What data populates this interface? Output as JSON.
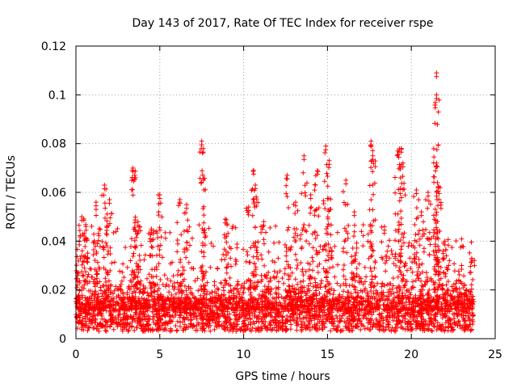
{
  "chart_data": {
    "type": "scatter",
    "title": "Day 143 of 2017, Rate Of TEC Index for receiver rspe",
    "xlabel": "GPS time / hours",
    "ylabel": "ROTI / TECUs",
    "xlim": [
      0,
      25
    ],
    "ylim": [
      0,
      0.12
    ],
    "x_ticks": [
      0,
      5,
      10,
      15,
      20,
      25
    ],
    "y_ticks": [
      0,
      0.02,
      0.04,
      0.06,
      0.08,
      0.1,
      0.12
    ],
    "x_tick_labels": [
      "0",
      "5",
      "10",
      "15",
      "20",
      "25"
    ],
    "y_tick_labels": [
      "0",
      "0.02",
      "0.04",
      "0.06",
      "0.08",
      "0.1",
      "0.12"
    ],
    "grid": true,
    "marker": "+",
    "marker_color": "#ff0000",
    "grid_color": "#a0a0a0",
    "series": [
      {
        "name": "ROTI",
        "notable_points": [
          {
            "x": 0.2,
            "y": 0.04
          },
          {
            "x": 0.35,
            "y": 0.05
          },
          {
            "x": 0.6,
            "y": 0.046
          },
          {
            "x": 1.2,
            "y": 0.056
          },
          {
            "x": 1.7,
            "y": 0.063
          },
          {
            "x": 2.0,
            "y": 0.057
          },
          {
            "x": 3.4,
            "y": 0.07
          },
          {
            "x": 3.5,
            "y": 0.067
          },
          {
            "x": 3.7,
            "y": 0.048
          },
          {
            "x": 4.5,
            "y": 0.045
          },
          {
            "x": 5.0,
            "y": 0.059
          },
          {
            "x": 6.2,
            "y": 0.057
          },
          {
            "x": 6.6,
            "y": 0.055
          },
          {
            "x": 7.5,
            "y": 0.081
          },
          {
            "x": 7.6,
            "y": 0.078
          },
          {
            "x": 8.9,
            "y": 0.049
          },
          {
            "x": 10.3,
            "y": 0.054
          },
          {
            "x": 10.6,
            "y": 0.069
          },
          {
            "x": 10.7,
            "y": 0.063
          },
          {
            "x": 11.2,
            "y": 0.048
          },
          {
            "x": 12.6,
            "y": 0.067
          },
          {
            "x": 13.1,
            "y": 0.056
          },
          {
            "x": 13.6,
            "y": 0.075
          },
          {
            "x": 14.0,
            "y": 0.059
          },
          {
            "x": 14.4,
            "y": 0.069
          },
          {
            "x": 14.9,
            "y": 0.079
          },
          {
            "x": 15.1,
            "y": 0.073
          },
          {
            "x": 16.1,
            "y": 0.065
          },
          {
            "x": 16.6,
            "y": 0.052
          },
          {
            "x": 17.6,
            "y": 0.081
          },
          {
            "x": 17.7,
            "y": 0.075
          },
          {
            "x": 18.4,
            "y": 0.046
          },
          {
            "x": 19.2,
            "y": 0.077
          },
          {
            "x": 19.4,
            "y": 0.078
          },
          {
            "x": 19.5,
            "y": 0.072
          },
          {
            "x": 20.3,
            "y": 0.061
          },
          {
            "x": 20.6,
            "y": 0.052
          },
          {
            "x": 21.0,
            "y": 0.06
          },
          {
            "x": 21.5,
            "y": 0.109
          },
          {
            "x": 21.5,
            "y": 0.1
          },
          {
            "x": 21.5,
            "y": 0.072
          },
          {
            "x": 21.6,
            "y": 0.062
          },
          {
            "x": 22.0,
            "y": 0.04
          },
          {
            "x": 23.0,
            "y": 0.03
          },
          {
            "x": 23.6,
            "y": 0.033
          }
        ],
        "background_level": 0.01,
        "data_x_range": [
          0,
          23.7
        ]
      }
    ]
  }
}
